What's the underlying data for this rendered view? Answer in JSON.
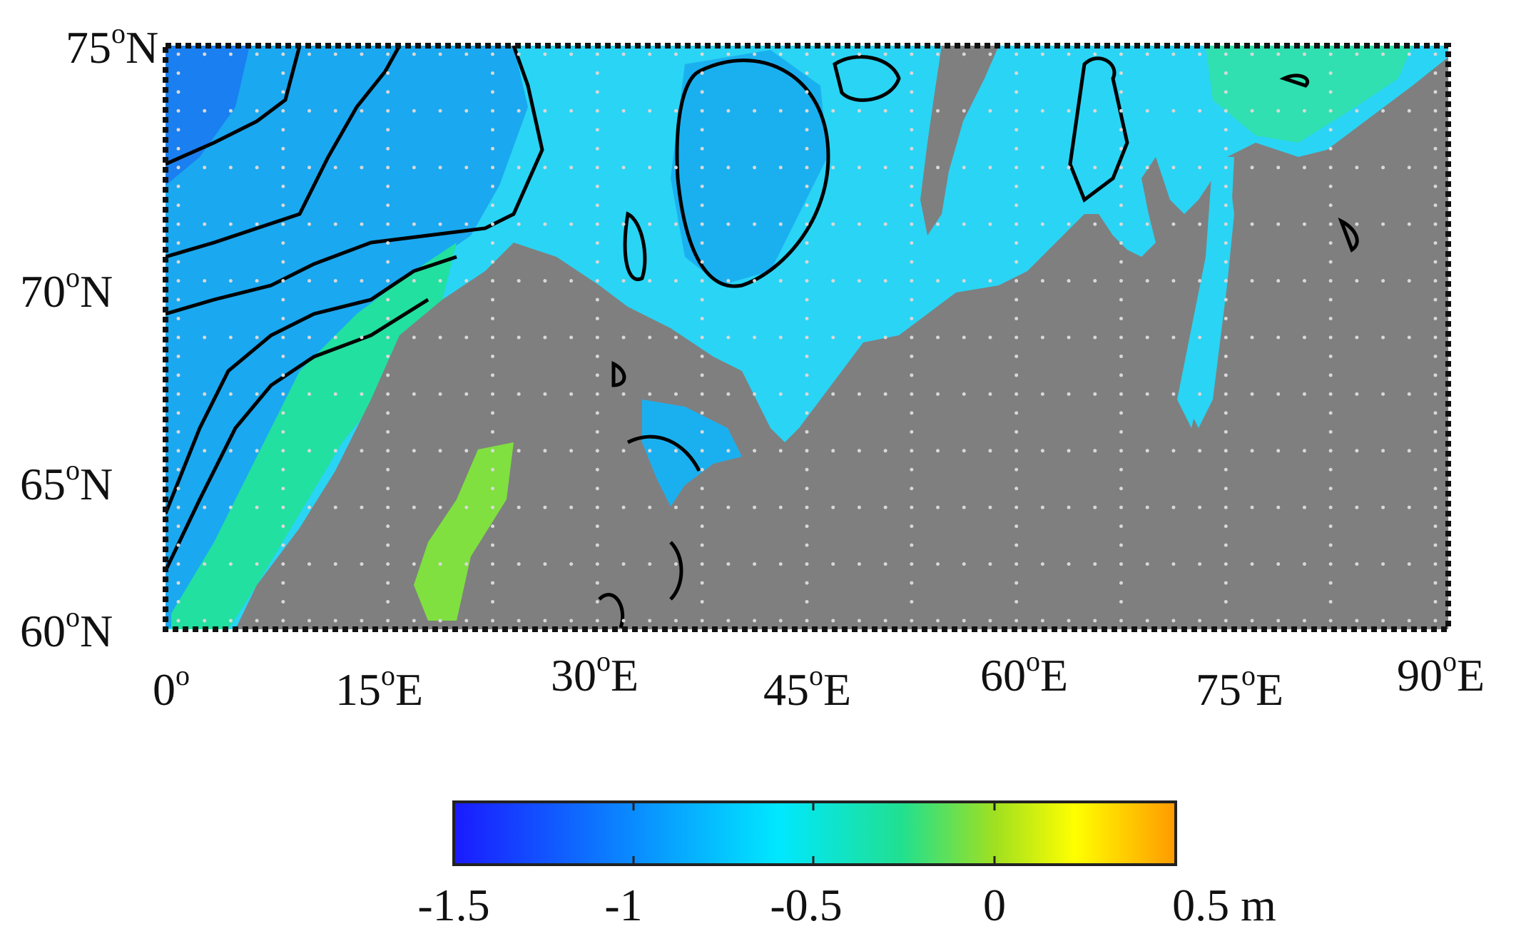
{
  "map": {
    "lat_labels": [
      {
        "deg": "75",
        "hemi": "N"
      },
      {
        "deg": "70",
        "hemi": "N"
      },
      {
        "deg": "65",
        "hemi": "N"
      },
      {
        "deg": "60",
        "hemi": "N"
      }
    ],
    "lon_labels": [
      {
        "deg": "0",
        "hemi": ""
      },
      {
        "deg": "15",
        "hemi": "E"
      },
      {
        "deg": "30",
        "hemi": "E"
      },
      {
        "deg": "45",
        "hemi": "E"
      },
      {
        "deg": "60",
        "hemi": "E"
      },
      {
        "deg": "75",
        "hemi": "E"
      },
      {
        "deg": "90",
        "hemi": "E"
      }
    ],
    "extent": {
      "lon": [
        0,
        90
      ],
      "lat": [
        60,
        75
      ]
    },
    "land_color": "#7f7f7f",
    "contour_color": "#000000",
    "grid_dot_color": "#d8d8d8"
  },
  "colorbar": {
    "tick_labels": [
      "-1.5",
      "-1",
      "-0.5",
      "0",
      "0.5 m"
    ],
    "range": [
      -1.5,
      0.5
    ],
    "unit": "m",
    "stops": [
      "#1a1aff",
      "#0a8cff",
      "#00e8ff",
      "#20e090",
      "#a0e020",
      "#ffff00",
      "#ff9a00"
    ]
  }
}
